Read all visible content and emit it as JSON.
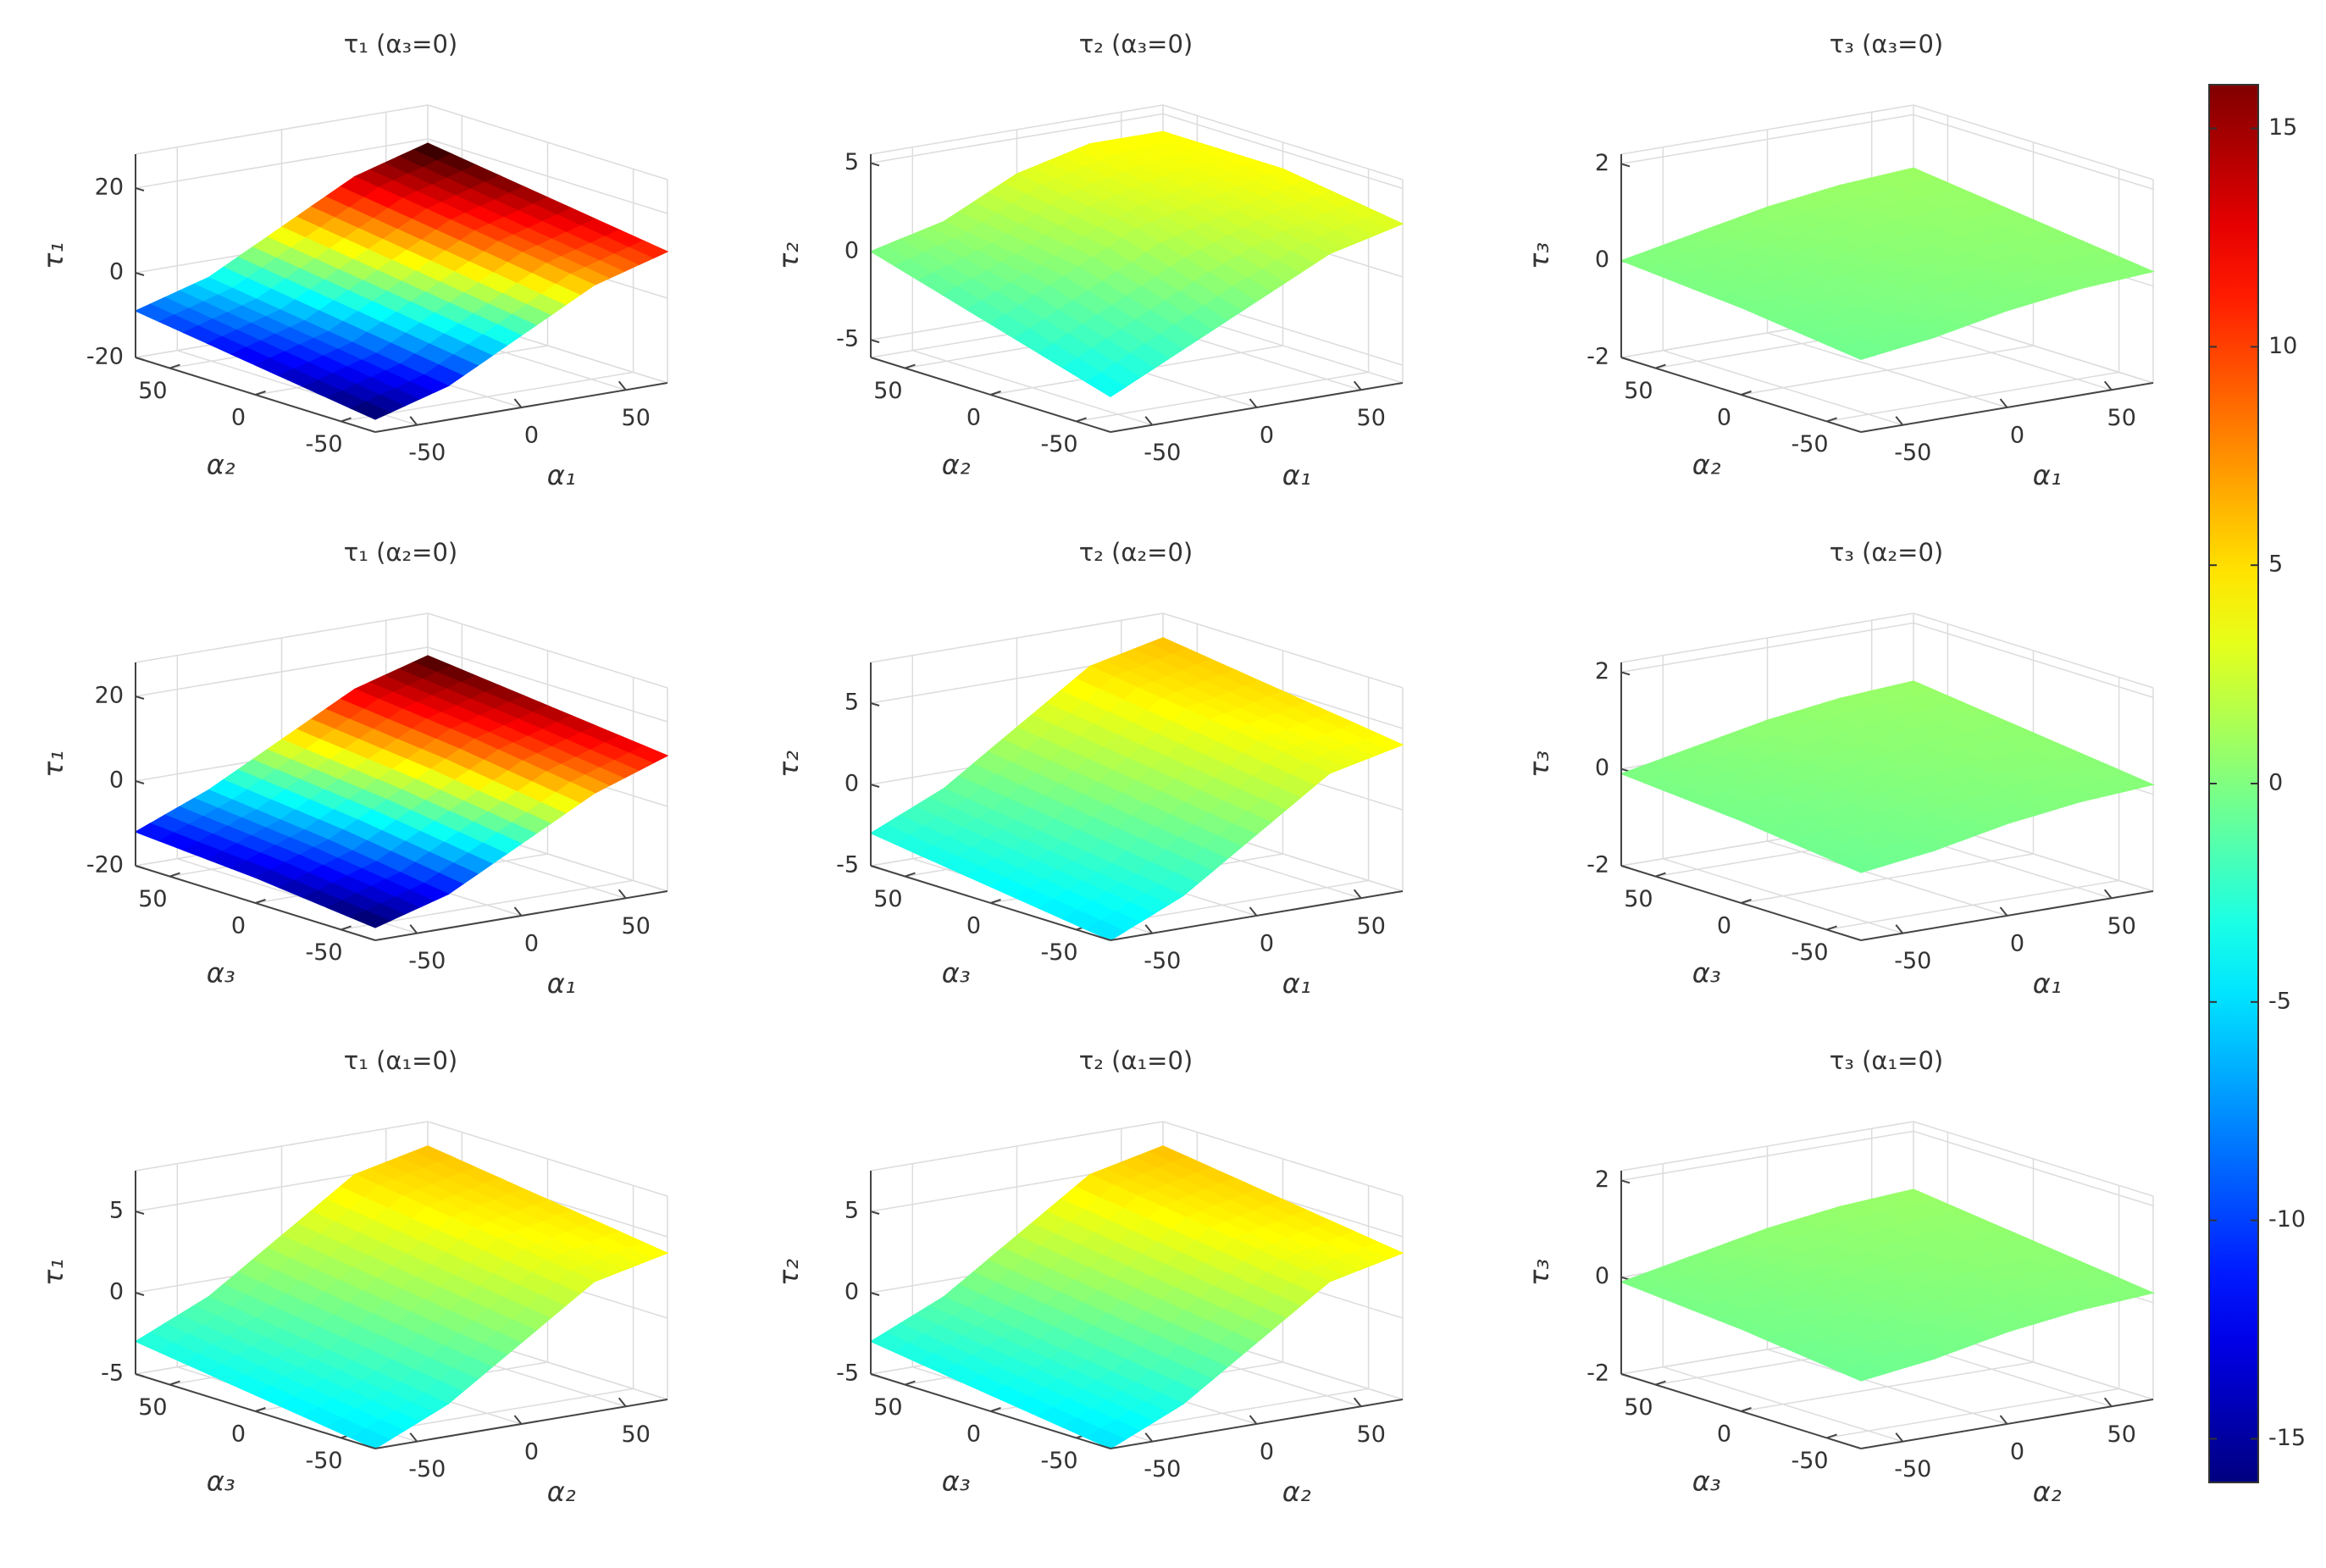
{
  "chart_data": [
    {
      "type": "surface",
      "title": "τ₁ (α₃=0)",
      "xlabel": "α₁",
      "ylabel": "α₂",
      "zlabel": "τ₁",
      "x_grid": [
        -70,
        -35,
        0,
        35,
        70
      ],
      "y_grid": [
        -70,
        0,
        70
      ],
      "z": [
        [
          -17,
          -12,
          -3,
          6,
          11
        ],
        [
          -13,
          -8,
          1,
          10,
          15
        ],
        [
          -9,
          -4,
          5,
          14,
          19
        ]
      ],
      "xlim": [
        -70,
        70
      ],
      "ylim": [
        -70,
        70
      ],
      "zlim": [
        -20,
        28
      ],
      "xticks": [
        -50,
        0,
        50
      ],
      "yticks": [
        -50,
        0,
        50
      ],
      "zticks": [
        -20,
        0,
        20
      ],
      "grid": true
    },
    {
      "type": "surface",
      "title": "τ₂ (α₃=0)",
      "xlabel": "α₁",
      "ylabel": "α₂",
      "zlabel": "τ₂",
      "x_grid": [
        -70,
        -35,
        0,
        35,
        70
      ],
      "y_grid": [
        -70,
        0,
        70
      ],
      "z": [
        [
          -4,
          -2,
          0,
          2,
          3
        ],
        [
          -2,
          0,
          2,
          3,
          4
        ],
        [
          0,
          1,
          3,
          4,
          4
        ]
      ],
      "xlim": [
        -70,
        70
      ],
      "ylim": [
        -70,
        70
      ],
      "zlim": [
        -6,
        5.5
      ],
      "xticks": [
        -50,
        0,
        50
      ],
      "yticks": [
        -50,
        0,
        50
      ],
      "zticks": [
        -5,
        0,
        5
      ],
      "grid": true
    },
    {
      "type": "surface",
      "title": "τ₃ (α₃=0)",
      "xlabel": "α₁",
      "ylabel": "α₂",
      "zlabel": "τ₃",
      "x_grid": [
        -70,
        -35,
        0,
        35,
        70
      ],
      "y_grid": [
        -70,
        0,
        70
      ],
      "z": [
        [
          -0.5,
          -0.3,
          0,
          0.2,
          0.3
        ],
        [
          -0.2,
          0,
          0.3,
          0.5,
          0.6
        ],
        [
          0,
          0.3,
          0.6,
          0.8,
          0.9
        ]
      ],
      "xlim": [
        -70,
        70
      ],
      "ylim": [
        -70,
        70
      ],
      "zlim": [
        -2,
        2.2
      ],
      "xticks": [
        -50,
        0,
        50
      ],
      "yticks": [
        -50,
        0,
        50
      ],
      "zticks": [
        -2,
        0,
        2
      ],
      "grid": true
    },
    {
      "type": "surface",
      "title": "τ₁ (α₂=0)",
      "xlabel": "α₁",
      "ylabel": "α₃",
      "zlabel": "τ₁",
      "x_grid": [
        -70,
        -35,
        0,
        35,
        70
      ],
      "y_grid": [
        -70,
        0,
        70
      ],
      "z": [
        [
          -17,
          -12,
          -3,
          6,
          12
        ],
        [
          -14,
          -8,
          1,
          10,
          15
        ],
        [
          -12,
          -5,
          4,
          13,
          18
        ]
      ],
      "xlim": [
        -70,
        70
      ],
      "ylim": [
        -70,
        70
      ],
      "zlim": [
        -20,
        28
      ],
      "xticks": [
        -50,
        0,
        50
      ],
      "yticks": [
        -50,
        0,
        50
      ],
      "zticks": [
        -20,
        0,
        20
      ],
      "grid": true
    },
    {
      "type": "surface",
      "title": "τ₂ (α₂=0)",
      "xlabel": "α₁",
      "ylabel": "α₃",
      "zlabel": "τ₂",
      "x_grid": [
        -70,
        -35,
        0,
        35,
        70
      ],
      "y_grid": [
        -70,
        0,
        70
      ],
      "z": [
        [
          -5,
          -3,
          0,
          3,
          4
        ],
        [
          -4,
          -2,
          1,
          4,
          5
        ],
        [
          -3,
          -1,
          2,
          5,
          6
        ]
      ],
      "xlim": [
        -70,
        70
      ],
      "ylim": [
        -70,
        70
      ],
      "zlim": [
        -5,
        7.5
      ],
      "xticks": [
        -50,
        0,
        50
      ],
      "yticks": [
        -50,
        0,
        50
      ],
      "zticks": [
        -5,
        0,
        5
      ],
      "grid": true
    },
    {
      "type": "surface",
      "title": "τ₃ (α₂=0)",
      "xlabel": "α₁",
      "ylabel": "α₃",
      "zlabel": "τ₃",
      "x_grid": [
        -70,
        -35,
        0,
        35,
        70
      ],
      "y_grid": [
        -70,
        0,
        70
      ],
      "z": [
        [
          -0.6,
          -0.4,
          -0.1,
          0.1,
          0.2
        ],
        [
          -0.3,
          -0.1,
          0.2,
          0.4,
          0.5
        ],
        [
          -0.1,
          0.2,
          0.5,
          0.7,
          0.8
        ]
      ],
      "xlim": [
        -70,
        70
      ],
      "ylim": [
        -70,
        70
      ],
      "zlim": [
        -2,
        2.2
      ],
      "xticks": [
        -50,
        0,
        50
      ],
      "yticks": [
        -50,
        0,
        50
      ],
      "zticks": [
        -2,
        0,
        2
      ],
      "grid": true
    },
    {
      "type": "surface",
      "title": "τ₁ (α₁=0)",
      "xlabel": "α₂",
      "ylabel": "α₃",
      "zlabel": "τ₁",
      "x_grid": [
        -70,
        -35,
        0,
        35,
        70
      ],
      "y_grid": [
        -70,
        0,
        70
      ],
      "z": [
        [
          -5,
          -3,
          0,
          3,
          4
        ],
        [
          -4,
          -2,
          1,
          4,
          5
        ],
        [
          -3,
          -1,
          2,
          5,
          6
        ]
      ],
      "xlim": [
        -70,
        70
      ],
      "ylim": [
        -70,
        70
      ],
      "zlim": [
        -5,
        7.5
      ],
      "xticks": [
        -50,
        0,
        50
      ],
      "yticks": [
        -50,
        0,
        50
      ],
      "zticks": [
        -5,
        0,
        5
      ],
      "grid": true
    },
    {
      "type": "surface",
      "title": "τ₂ (α₁=0)",
      "xlabel": "α₂",
      "ylabel": "α₃",
      "zlabel": "τ₂",
      "x_grid": [
        -70,
        -35,
        0,
        35,
        70
      ],
      "y_grid": [
        -70,
        0,
        70
      ],
      "z": [
        [
          -5,
          -3,
          0,
          3,
          4
        ],
        [
          -4,
          -2,
          1,
          4,
          5
        ],
        [
          -3,
          -1,
          2,
          5,
          6
        ]
      ],
      "xlim": [
        -70,
        70
      ],
      "ylim": [
        -70,
        70
      ],
      "zlim": [
        -5,
        7.5
      ],
      "xticks": [
        -50,
        0,
        50
      ],
      "yticks": [
        -50,
        0,
        50
      ],
      "zticks": [
        -5,
        0,
        5
      ],
      "grid": true
    },
    {
      "type": "surface",
      "title": "τ₃ (α₁=0)",
      "xlabel": "α₂",
      "ylabel": "α₃",
      "zlabel": "τ₃",
      "x_grid": [
        -70,
        -35,
        0,
        35,
        70
      ],
      "y_grid": [
        -70,
        0,
        70
      ],
      "z": [
        [
          -0.6,
          -0.4,
          -0.1,
          0.1,
          0.2
        ],
        [
          -0.3,
          -0.1,
          0.2,
          0.4,
          0.5
        ],
        [
          -0.1,
          0.2,
          0.5,
          0.7,
          0.8
        ]
      ],
      "xlim": [
        -70,
        70
      ],
      "ylim": [
        -70,
        70
      ],
      "zlim": [
        -2,
        2.2
      ],
      "xticks": [
        -50,
        0,
        50
      ],
      "yticks": [
        -50,
        0,
        50
      ],
      "zticks": [
        -2,
        0,
        2
      ],
      "grid": true
    },
    {
      "type": "colorbar",
      "colormap": "jet",
      "ylim": [
        -16,
        16
      ],
      "yticks": [
        -15,
        -10,
        -5,
        0,
        5,
        10,
        15
      ]
    }
  ]
}
